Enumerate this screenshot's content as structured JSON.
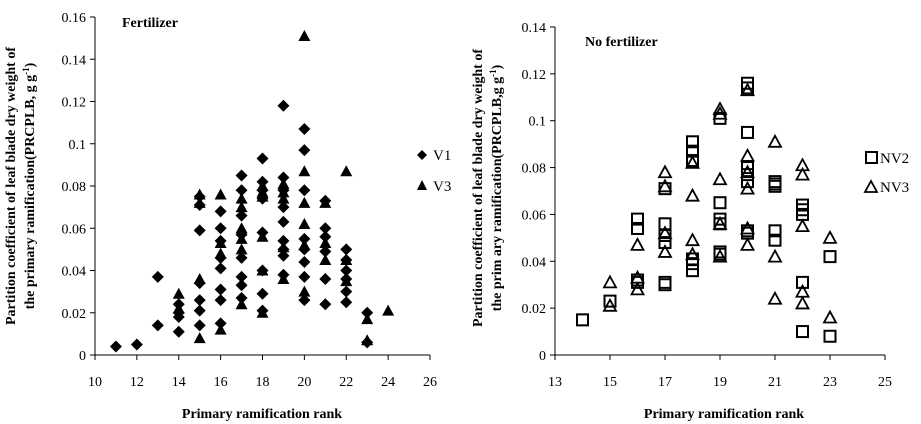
{
  "chart_data": [
    {
      "type": "scatter",
      "annotation": "Fertilizer",
      "xlabel": "Primary ramification rank",
      "ylabel_line1": "Partition coefficient of leaf blade dry weight of",
      "ylabel_line2": "the primary ramification(PRCPLB,  g g",
      "ylabel_sup": "-1",
      "ylabel_end": ")",
      "xlim": [
        10,
        26
      ],
      "ylim": [
        0,
        0.16
      ],
      "xticks": [
        "10",
        "12",
        "14",
        "16",
        "18",
        "20",
        "22",
        "24",
        "26"
      ],
      "yticks": [
        "0",
        "0.02",
        "0.04",
        "0.06",
        "0.08",
        "0.1",
        "0.12",
        "0.14",
        "0.16"
      ],
      "grid": false,
      "legend_position": "right",
      "series": [
        {
          "name": "V1",
          "marker": "diamond",
          "points": [
            [
              11,
              0.004
            ],
            [
              12,
              0.005
            ],
            [
              13,
              0.014
            ],
            [
              13,
              0.037
            ],
            [
              14,
              0.011
            ],
            [
              14,
              0.018
            ],
            [
              14,
              0.02
            ],
            [
              14,
              0.024
            ],
            [
              15,
              0.014
            ],
            [
              15,
              0.021
            ],
            [
              15,
              0.026
            ],
            [
              15,
              0.034
            ],
            [
              15,
              0.059
            ],
            [
              15,
              0.071
            ],
            [
              15,
              0.075
            ],
            [
              16,
              0.015
            ],
            [
              16,
              0.026
            ],
            [
              16,
              0.031
            ],
            [
              16,
              0.041
            ],
            [
              16,
              0.046
            ],
            [
              16,
              0.054
            ],
            [
              16,
              0.06
            ],
            [
              16,
              0.068
            ],
            [
              17,
              0.027
            ],
            [
              17,
              0.033
            ],
            [
              17,
              0.037
            ],
            [
              17,
              0.046
            ],
            [
              17,
              0.057
            ],
            [
              17,
              0.066
            ],
            [
              17,
              0.078
            ],
            [
              17,
              0.085
            ],
            [
              18,
              0.021
            ],
            [
              18,
              0.029
            ],
            [
              18,
              0.04
            ],
            [
              18,
              0.058
            ],
            [
              18,
              0.074
            ],
            [
              18,
              0.078
            ],
            [
              18,
              0.082
            ],
            [
              18,
              0.093
            ],
            [
              19,
              0.038
            ],
            [
              19,
              0.047
            ],
            [
              19,
              0.05
            ],
            [
              19,
              0.054
            ],
            [
              19,
              0.063
            ],
            [
              19,
              0.07
            ],
            [
              19,
              0.078
            ],
            [
              19,
              0.084
            ],
            [
              19,
              0.118
            ],
            [
              20,
              0.026
            ],
            [
              20,
              0.037
            ],
            [
              20,
              0.044
            ],
            [
              20,
              0.05
            ],
            [
              20,
              0.055
            ],
            [
              20,
              0.078
            ],
            [
              20,
              0.097
            ],
            [
              20,
              0.107
            ],
            [
              21,
              0.024
            ],
            [
              21,
              0.036
            ],
            [
              21,
              0.049
            ],
            [
              21,
              0.056
            ],
            [
              21,
              0.06
            ],
            [
              21,
              0.073
            ],
            [
              22,
              0.025
            ],
            [
              22,
              0.03
            ],
            [
              22,
              0.036
            ],
            [
              22,
              0.04
            ],
            [
              22,
              0.045
            ],
            [
              22,
              0.05
            ],
            [
              23,
              0.006
            ],
            [
              23,
              0.02
            ]
          ]
        },
        {
          "name": "V3",
          "marker": "triangle",
          "points": [
            [
              14,
              0.022
            ],
            [
              14,
              0.029
            ],
            [
              15,
              0.008
            ],
            [
              15,
              0.036
            ],
            [
              15,
              0.072
            ],
            [
              15,
              0.076
            ],
            [
              16,
              0.012
            ],
            [
              16,
              0.048
            ],
            [
              16,
              0.053
            ],
            [
              16,
              0.076
            ],
            [
              17,
              0.024
            ],
            [
              17,
              0.05
            ],
            [
              17,
              0.055
            ],
            [
              17,
              0.06
            ],
            [
              17,
              0.07
            ],
            [
              17,
              0.074
            ],
            [
              18,
              0.02
            ],
            [
              18,
              0.04
            ],
            [
              18,
              0.056
            ],
            [
              18,
              0.075
            ],
            [
              18,
              0.077
            ],
            [
              18,
              0.08
            ],
            [
              19,
              0.036
            ],
            [
              19,
              0.051
            ],
            [
              19,
              0.074
            ],
            [
              19,
              0.077
            ],
            [
              19,
              0.081
            ],
            [
              20,
              0.03
            ],
            [
              20,
              0.052
            ],
            [
              20,
              0.062
            ],
            [
              20,
              0.072
            ],
            [
              20,
              0.087
            ],
            [
              20,
              0.151
            ],
            [
              21,
              0.045
            ],
            [
              21,
              0.053
            ],
            [
              21,
              0.072
            ],
            [
              22,
              0.035
            ],
            [
              22,
              0.045
            ],
            [
              22,
              0.087
            ],
            [
              23,
              0.017
            ],
            [
              23,
              0.007
            ],
            [
              24,
              0.021
            ]
          ]
        }
      ]
    },
    {
      "type": "scatter",
      "annotation": "No fertilizer",
      "xlabel": "Primary ramification rank",
      "ylabel_line1": "Partition coefficient of leaf blade dry weight of",
      "ylabel_line2": "the prim ary ramification(PRCPLB,g g",
      "ylabel_sup": "-1",
      "ylabel_end": ")",
      "xlim": [
        13,
        25
      ],
      "ylim": [
        0,
        0.14
      ],
      "xticks": [
        "13",
        "15",
        "17",
        "19",
        "21",
        "23",
        "25"
      ],
      "yticks": [
        "0",
        "0.02",
        "0.04",
        "0.06",
        "0.08",
        "0.1",
        "0.12",
        "0.14"
      ],
      "grid": false,
      "legend_position": "right",
      "series": [
        {
          "name": "NV2",
          "marker": "square-open",
          "points": [
            [
              14,
              0.015
            ],
            [
              15,
              0.023
            ],
            [
              16,
              0.031
            ],
            [
              16,
              0.032
            ],
            [
              16,
              0.054
            ],
            [
              16,
              0.058
            ],
            [
              17,
              0.03
            ],
            [
              17,
              0.031
            ],
            [
              17,
              0.048
            ],
            [
              17,
              0.051
            ],
            [
              17,
              0.056
            ],
            [
              17,
              0.071
            ],
            [
              18,
              0.036
            ],
            [
              18,
              0.039
            ],
            [
              18,
              0.041
            ],
            [
              18,
              0.083
            ],
            [
              18,
              0.087
            ],
            [
              18,
              0.091
            ],
            [
              19,
              0.043
            ],
            [
              19,
              0.044
            ],
            [
              19,
              0.056
            ],
            [
              19,
              0.058
            ],
            [
              19,
              0.065
            ],
            [
              19,
              0.101
            ],
            [
              20,
              0.052
            ],
            [
              20,
              0.053
            ],
            [
              20,
              0.074
            ],
            [
              20,
              0.077
            ],
            [
              20,
              0.08
            ],
            [
              20,
              0.095
            ],
            [
              20,
              0.114
            ],
            [
              20,
              0.116
            ],
            [
              21,
              0.049
            ],
            [
              21,
              0.053
            ],
            [
              21,
              0.072
            ],
            [
              21,
              0.073
            ],
            [
              21,
              0.074
            ],
            [
              22,
              0.01
            ],
            [
              22,
              0.031
            ],
            [
              22,
              0.06
            ],
            [
              22,
              0.062
            ],
            [
              22,
              0.064
            ],
            [
              23,
              0.008
            ],
            [
              23,
              0.042
            ]
          ]
        },
        {
          "name": "NV3",
          "marker": "triangle-open",
          "points": [
            [
              15,
              0.021
            ],
            [
              15,
              0.031
            ],
            [
              16,
              0.028
            ],
            [
              16,
              0.033
            ],
            [
              16,
              0.047
            ],
            [
              17,
              0.044
            ],
            [
              17,
              0.052
            ],
            [
              17,
              0.072
            ],
            [
              17,
              0.078
            ],
            [
              18,
              0.043
            ],
            [
              18,
              0.049
            ],
            [
              18,
              0.068
            ],
            [
              18,
              0.082
            ],
            [
              19,
              0.042
            ],
            [
              19,
              0.056
            ],
            [
              19,
              0.075
            ],
            [
              19,
              0.103
            ],
            [
              19,
              0.105
            ],
            [
              20,
              0.047
            ],
            [
              20,
              0.054
            ],
            [
              20,
              0.071
            ],
            [
              20,
              0.078
            ],
            [
              20,
              0.085
            ],
            [
              20,
              0.113
            ],
            [
              21,
              0.024
            ],
            [
              21,
              0.042
            ],
            [
              21,
              0.091
            ],
            [
              22,
              0.022
            ],
            [
              22,
              0.027
            ],
            [
              22,
              0.055
            ],
            [
              22,
              0.077
            ],
            [
              22,
              0.081
            ],
            [
              23,
              0.016
            ],
            [
              23,
              0.05
            ]
          ]
        }
      ]
    }
  ]
}
